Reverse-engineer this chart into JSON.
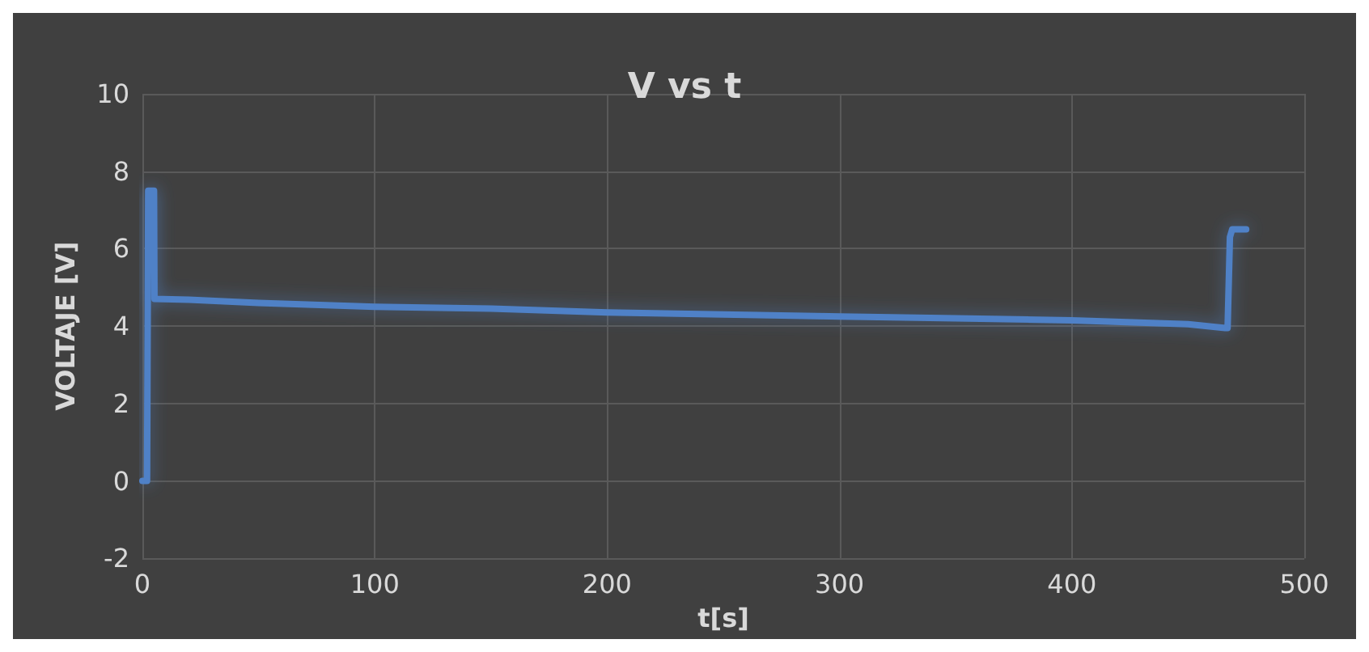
{
  "chart_data": {
    "type": "line",
    "title": "V vs t",
    "xlabel": "t[s]",
    "ylabel": "VOLTAJE [V]",
    "x": [
      0,
      1,
      2,
      2.5,
      5,
      5.2,
      20,
      50,
      100,
      150,
      200,
      250,
      300,
      350,
      400,
      450,
      466,
      467,
      468,
      469,
      475
    ],
    "series": [
      {
        "color": "#4f81c7",
        "values": [
          0,
          0,
          0,
          7.5,
          7.5,
          4.7,
          4.68,
          4.6,
          4.5,
          4.45,
          4.35,
          4.3,
          4.25,
          4.2,
          4.15,
          4.05,
          3.95,
          3.95,
          6.3,
          6.5,
          6.5
        ]
      }
    ],
    "xlim": [
      0,
      500
    ],
    "xticks": [
      0,
      100,
      200,
      300,
      400,
      500
    ],
    "ylim": [
      -2,
      10
    ],
    "yticks": [
      -2,
      0,
      2,
      4,
      6,
      8,
      10
    ],
    "grid": true,
    "marker": "none",
    "line_style": "solid"
  }
}
